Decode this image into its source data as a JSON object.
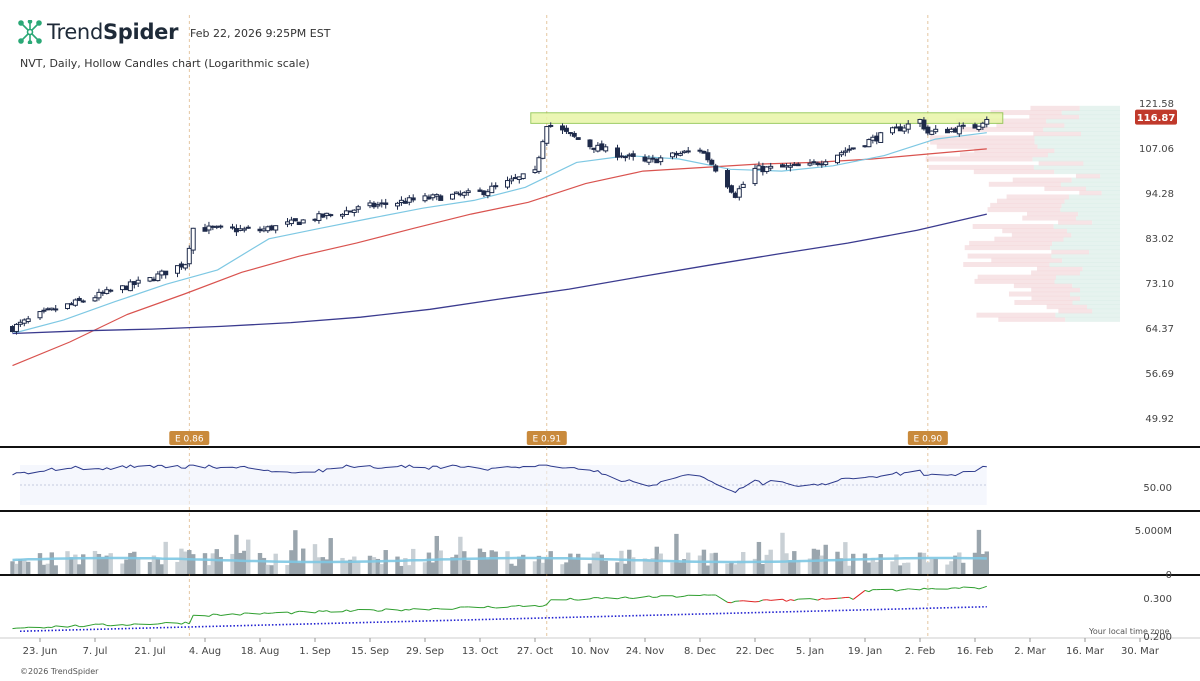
{
  "header": {
    "brand_light": "Trend",
    "brand_bold": "Spider",
    "timestamp": "Feb 22, 2026 9:25PM EST",
    "subtitle": "NVT, Daily, Hollow Candles chart (Logarithmic scale)",
    "copyright": "©2026 TrendSpider",
    "timezone_note": "Your local time zone"
  },
  "colors": {
    "up": "#1e2a4a",
    "sma_short": "#7ec8e3",
    "sma_mid": "#d9534f",
    "sma_long": "#3b3b8f",
    "resistance_fill": "#e8f5a8",
    "resistance_border": "#8bc34a",
    "earnings": "#c98a3c",
    "rsi": "#2d3a8c",
    "volume": "#9aa5ad",
    "volume_ma": "#7ec8e3",
    "ind_up": "#2e9e2e",
    "ind_down": "#e02424",
    "ind_trend": "#1f1fd0",
    "price_tag": "#c0392b"
  },
  "chart_data": {
    "type": "candlestick",
    "scale": "log",
    "price_axis_ticks": [
      "121.58",
      "107.06",
      "94.28",
      "83.02",
      "73.10",
      "64.37",
      "56.69",
      "49.92"
    ],
    "last_price": "116.87",
    "x_ticks": [
      "23. Jun",
      "7. Jul",
      "21. Jul",
      "4. Aug",
      "18. Aug",
      "1. Sep",
      "15. Sep",
      "29. Sep",
      "13. Oct",
      "27. Oct",
      "10. Nov",
      "24. Nov",
      "8. Dec",
      "22. Dec",
      "5. Jan",
      "19. Jan",
      "2. Feb",
      "16. Feb",
      "2. Mar",
      "16. Mar",
      "30. Mar"
    ],
    "earnings": [
      {
        "label": "E 0.86",
        "date": "31. Jul"
      },
      {
        "label": "E 0.91",
        "date": "30. Oct"
      },
      {
        "label": "E 0.90",
        "date": "4. Feb"
      }
    ],
    "resistance_zone": {
      "low": 115.0,
      "high": 118.5,
      "from": "30. Oct",
      "to": "19. Feb"
    },
    "price_keypoints": [
      {
        "date": "16. Jun",
        "close": 64.5
      },
      {
        "date": "23. Jun",
        "close": 67.0
      },
      {
        "date": "7. Jul",
        "close": 70.5
      },
      {
        "date": "21. Jul",
        "close": 74.0
      },
      {
        "date": "30. Jul",
        "close": 77.5
      },
      {
        "date": "1. Aug",
        "close": 85.5
      },
      {
        "date": "18. Aug",
        "close": 85.0
      },
      {
        "date": "1. Sep",
        "close": 88.0
      },
      {
        "date": "15. Sep",
        "close": 91.0
      },
      {
        "date": "29. Sep",
        "close": 93.0
      },
      {
        "date": "13. Oct",
        "close": 94.5
      },
      {
        "date": "27. Oct",
        "close": 100.0
      },
      {
        "date": "30. Oct",
        "close": 115.0
      },
      {
        "date": "10. Nov",
        "close": 108.0
      },
      {
        "date": "24. Nov",
        "close": 103.0
      },
      {
        "date": "8. Dec",
        "close": 107.0
      },
      {
        "date": "17. Dec",
        "close": 94.0
      },
      {
        "date": "22. Dec",
        "close": 101.0
      },
      {
        "date": "5. Jan",
        "close": 102.0
      },
      {
        "date": "19. Jan",
        "close": 109.0
      },
      {
        "date": "2. Feb",
        "close": 116.0
      },
      {
        "date": "4. Feb",
        "close": 112.0
      },
      {
        "date": "16. Feb",
        "close": 114.0
      },
      {
        "date": "19. Feb",
        "close": 116.87
      }
    ],
    "sma_short_keypoints": [
      63.5,
      66.0,
      69.5,
      73.0,
      76.0,
      83.0,
      85.5,
      88.0,
      90.5,
      92.5,
      96.0,
      103.0,
      105.0,
      104.0,
      101.0,
      100.5,
      102.0,
      105.0,
      110.0,
      112.0
    ],
    "sma_mid_keypoints": [
      58.0,
      62.0,
      67.0,
      71.0,
      75.5,
      79.0,
      82.0,
      85.5,
      89.0,
      92.0,
      97.0,
      100.5,
      101.5,
      102.5,
      103.0,
      104.0,
      105.5,
      107.0
    ],
    "sma_long_keypoints": [
      63.5,
      64.0,
      64.3,
      64.8,
      65.5,
      66.5,
      68.0,
      70.0,
      72.0,
      74.5,
      77.0,
      79.5,
      82.0,
      85.0,
      89.0
    ],
    "rsi_axis_tick": "50.00",
    "volume_axis_tick": "5.000M",
    "indicator_axis_ticks": [
      "0",
      "0.300",
      "0.200"
    ]
  }
}
